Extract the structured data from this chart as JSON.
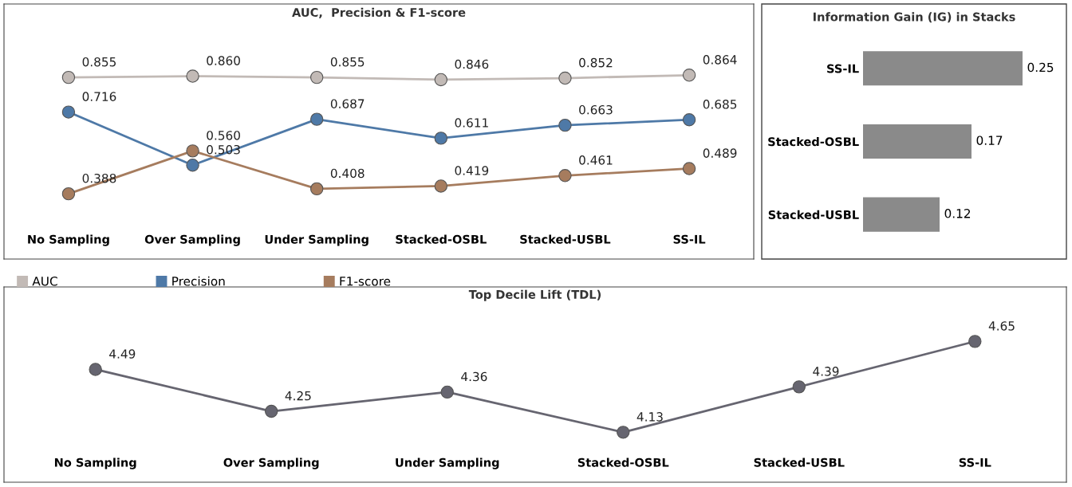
{
  "chart_data": [
    {
      "type": "line",
      "title": "AUC,  Precision & F1-score",
      "categories": [
        "No Sampling",
        "Over Sampling",
        "Under Sampling",
        "Stacked-OSBL",
        "Stacked-USBL",
        "SS-IL"
      ],
      "series": [
        {
          "name": "AUC",
          "color": "#c2bab6",
          "values": [
            0.855,
            0.86,
            0.855,
            0.846,
            0.852,
            0.864
          ],
          "value_labels": [
            "0.855",
            "0.860",
            "0.855",
            "0.846",
            "0.852",
            "0.864"
          ]
        },
        {
          "name": "Precision",
          "color": "#4e79a7",
          "values": [
            0.716,
            0.503,
            0.687,
            0.611,
            0.663,
            0.685
          ],
          "value_labels": [
            "0.716",
            "0.503",
            "0.687",
            "0.611",
            "0.663",
            "0.685"
          ]
        },
        {
          "name": "F1-score",
          "color": "#a67c5e",
          "values": [
            0.388,
            0.56,
            0.408,
            0.419,
            0.461,
            0.489
          ],
          "value_labels": [
            "0.388",
            "0.560",
            "0.408",
            "0.419",
            "0.461",
            "0.489"
          ]
        }
      ],
      "marker": "circle",
      "legend": "bottom",
      "grid": false
    },
    {
      "type": "bar",
      "orientation": "horizontal",
      "title": "Information Gain (IG) in Stacks",
      "categories": [
        "SS-IL",
        "Stacked-OSBL",
        "Stacked-USBL"
      ],
      "values": [
        0.25,
        0.17,
        0.12
      ],
      "color": "#8a8a8a",
      "data_labels": true,
      "grid": false
    },
    {
      "type": "line",
      "title": "Top Decile Lift (TDL)",
      "categories": [
        "No Sampling",
        "Over Sampling",
        "Under Sampling",
        "Stacked-OSBL",
        "Stacked-USBL",
        "SS-IL"
      ],
      "series": [
        {
          "color": "#666570",
          "values": [
            4.49,
            4.25,
            4.36,
            4.13,
            4.39,
            4.65
          ]
        }
      ],
      "data_labels": true,
      "marker": "circle",
      "grid": false
    }
  ]
}
